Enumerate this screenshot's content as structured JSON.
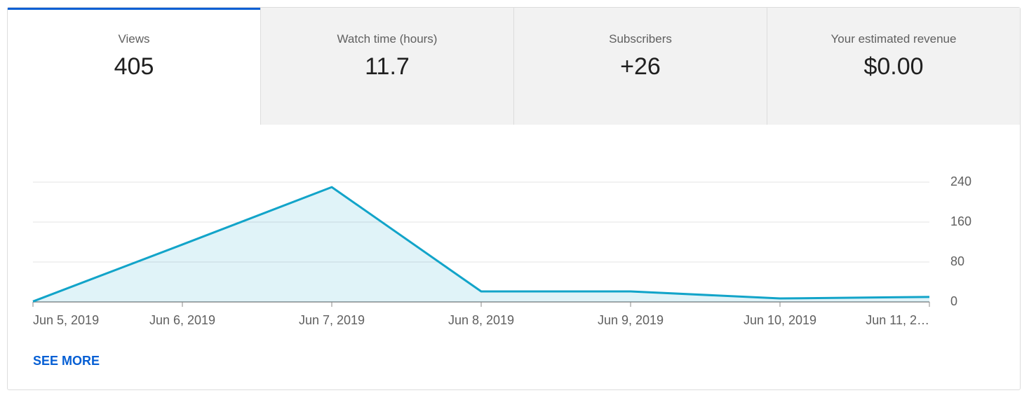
{
  "tabs": [
    {
      "label": "Views",
      "value": "405"
    },
    {
      "label": "Watch time (hours)",
      "value": "11.7"
    },
    {
      "label": "Subscribers",
      "value": "+26"
    },
    {
      "label": "Your estimated revenue",
      "value": "$0.00"
    }
  ],
  "chart_data": {
    "type": "line",
    "categories": [
      "Jun 5, 2019",
      "Jun 6, 2019",
      "Jun 7, 2019",
      "Jun 8, 2019",
      "Jun 9, 2019",
      "Jun 10, 2019",
      "Jun 11, 2…"
    ],
    "values": [
      1,
      115,
      230,
      21,
      21,
      7,
      10
    ],
    "color": "#12a4c9",
    "area": true,
    "ylim": [
      0,
      240
    ],
    "yticks": [
      0,
      80,
      160,
      240
    ],
    "grid": true
  },
  "see_more": "SEE MORE"
}
